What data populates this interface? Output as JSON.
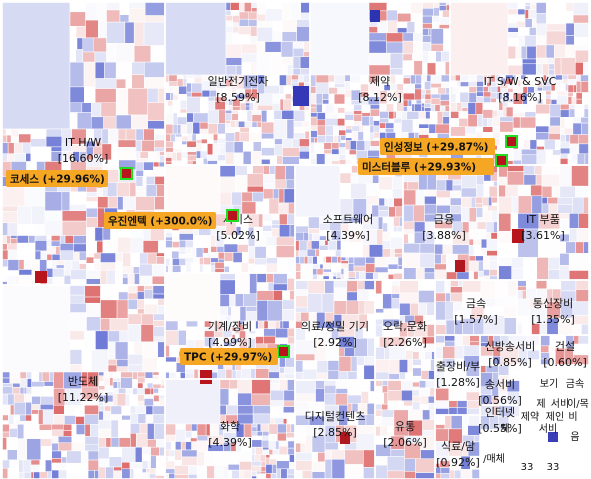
{
  "chart_data": {
    "type": "treemap",
    "title": "",
    "color_scale": {
      "down": "#3f4fc8",
      "neutral": "#ffffff",
      "up": "#d23a3a"
    },
    "sectors": [
      {
        "name": "IT H/W",
        "pct_label": "[16.60%]"
      },
      {
        "name": "일반전기전자",
        "pct_label": "[8.59%]"
      },
      {
        "name": "제약",
        "pct_label": "[8.12%]"
      },
      {
        "name": "IT S/W & SVC",
        "pct_label": "[8.16%]"
      },
      {
        "name": "서비스",
        "pct_label": "[5.02%]"
      },
      {
        "name": "소프트웨어",
        "pct_label": "[4.39%]"
      },
      {
        "name": "금융",
        "pct_label": "[3.88%]"
      },
      {
        "name": "IT 부품",
        "pct_label": "[3.61%]"
      },
      {
        "name": "반도체",
        "pct_label": "[11.22%]"
      },
      {
        "name": "기계/장비",
        "pct_label": "[4.99%]"
      },
      {
        "name": "화학",
        "pct_label": "[4.39%]"
      },
      {
        "name": "의료/정밀 기기",
        "pct_label": "[2.92%]"
      },
      {
        "name": "디지털컨텐츠",
        "pct_label": "[2.85%]"
      },
      {
        "name": "오락,문화",
        "pct_label": "[2.26%]"
      },
      {
        "name": "유통",
        "pct_label": "[2.06%]"
      },
      {
        "name": "금속",
        "pct_label": "[1.57%]"
      },
      {
        "name": "통신장비",
        "pct_label": "[1.35%]"
      },
      {
        "name": "출장비/부",
        "pct_label": "[1.28%]"
      },
      {
        "name": "식료/담",
        "pct_label": "[0.92%]"
      },
      {
        "name": "신방송서비",
        "pct_label": "[0.85%]"
      },
      {
        "name": "건설",
        "pct_label": "[0.60%]"
      },
      {
        "name": "송서비",
        "pct_label": "[0.56%]"
      },
      {
        "name": "인터넷",
        "pct_label": "[0.55%]"
      }
    ],
    "callouts": [
      {
        "label": "코세스 (+29.96%)"
      },
      {
        "label": "우진엔텍 (+300.0%)"
      },
      {
        "label": "인성정보 (+29.87%)"
      },
      {
        "name": "미스터블루",
        "label": "미스터블루 (+29.93%)"
      },
      {
        "label": "TPC (+29.97%)"
      }
    ],
    "small_labels": [
      "보기",
      "금속",
      "제",
      "서비",
      "이/목",
      "체",
      "제약",
      "제인",
      "비",
      "서비",
      "음",
      "/매체",
      "33",
      "33"
    ]
  }
}
